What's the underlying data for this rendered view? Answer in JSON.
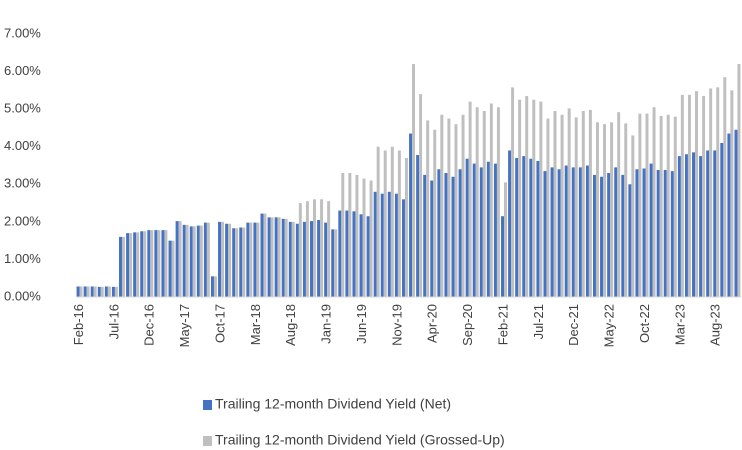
{
  "chart_data": {
    "type": "bar",
    "categories": [
      "Feb-16",
      null,
      null,
      null,
      null,
      "Jul-16",
      null,
      null,
      null,
      null,
      "Dec-16",
      null,
      null,
      null,
      null,
      "May-17",
      null,
      null,
      null,
      null,
      "Oct-17",
      null,
      null,
      null,
      null,
      "Mar-18",
      null,
      null,
      null,
      null,
      "Aug-18",
      null,
      null,
      null,
      null,
      "Jan-19",
      null,
      null,
      null,
      null,
      "Jun-19",
      null,
      null,
      null,
      null,
      "Nov-19",
      null,
      null,
      null,
      null,
      "Apr-20",
      null,
      null,
      null,
      null,
      "Sep-20",
      null,
      null,
      null,
      null,
      "Feb-21",
      null,
      null,
      null,
      null,
      "Jul-21",
      null,
      null,
      null,
      null,
      "Dec-21",
      null,
      null,
      null,
      null,
      "May-22",
      null,
      null,
      null,
      null,
      "Oct-22",
      null,
      null,
      null,
      null,
      "Mar-23",
      null,
      null,
      null,
      null,
      "Aug-23",
      null,
      null,
      null
    ],
    "series": [
      {
        "name": "Trailing 12-month Dividend Yield (Net)",
        "color": "#4472c4",
        "values": [
          0.28,
          0.28,
          0.28,
          0.27,
          0.28,
          0.27,
          1.6,
          1.7,
          1.72,
          1.75,
          1.78,
          1.78,
          1.78,
          1.5,
          2.02,
          1.92,
          1.88,
          1.9,
          1.98,
          0.55,
          2.0,
          1.95,
          1.83,
          1.85,
          1.98,
          1.98,
          2.22,
          2.12,
          2.12,
          2.08,
          2.0,
          1.95,
          2.0,
          2.02,
          2.05,
          1.98,
          1.8,
          2.3,
          2.3,
          2.28,
          2.2,
          2.15,
          2.8,
          2.75,
          2.8,
          2.75,
          2.6,
          4.35,
          3.78,
          3.25,
          3.1,
          3.4,
          3.3,
          3.2,
          3.4,
          3.68,
          3.55,
          3.45,
          3.6,
          3.55,
          2.15,
          3.9,
          3.7,
          3.75,
          3.68,
          3.62,
          3.35,
          3.45,
          3.4,
          3.5,
          3.45,
          3.45,
          3.5,
          3.25,
          3.2,
          3.3,
          3.45,
          3.25,
          3.0,
          3.4,
          3.42,
          3.55,
          3.38,
          3.38,
          3.35,
          3.75,
          3.8,
          3.85,
          3.75,
          3.9,
          3.9,
          4.1,
          4.35,
          4.45
        ]
      },
      {
        "name": "Trailing 12-month Dividend Yield (Grossed-Up)",
        "color": "#bfbfbf",
        "values": [
          0.28,
          0.28,
          0.28,
          0.27,
          0.28,
          0.27,
          1.6,
          1.7,
          1.72,
          1.75,
          1.78,
          1.78,
          1.78,
          1.5,
          2.02,
          1.92,
          1.88,
          1.9,
          1.98,
          0.55,
          2.0,
          1.95,
          1.83,
          1.85,
          1.98,
          1.98,
          2.22,
          2.12,
          2.12,
          2.08,
          2.0,
          2.5,
          2.55,
          2.6,
          2.6,
          2.55,
          1.8,
          3.3,
          3.3,
          3.25,
          3.15,
          3.1,
          4.0,
          3.9,
          4.0,
          3.9,
          3.7,
          6.2,
          5.4,
          4.7,
          4.45,
          4.85,
          4.75,
          4.6,
          4.85,
          5.2,
          5.05,
          4.95,
          5.15,
          5.05,
          3.05,
          5.58,
          5.25,
          5.35,
          5.25,
          5.2,
          4.75,
          4.95,
          4.85,
          5.02,
          4.78,
          4.95,
          4.98,
          4.65,
          4.6,
          4.65,
          4.92,
          4.62,
          4.3,
          4.88,
          4.88,
          5.05,
          4.82,
          4.85,
          4.8,
          5.38,
          5.38,
          5.48,
          5.35,
          5.55,
          5.58,
          5.85,
          5.5,
          6.2
        ]
      }
    ],
    "ylim": [
      0,
      7
    ],
    "yticks": [
      {
        "value": 0,
        "label": "0.00%"
      },
      {
        "value": 1,
        "label": "1.00%"
      },
      {
        "value": 2,
        "label": "2.00%"
      },
      {
        "value": 3,
        "label": "3.00%"
      },
      {
        "value": 4,
        "label": "4.00%"
      },
      {
        "value": 5,
        "label": "5.00%"
      },
      {
        "value": 6,
        "label": "6.00%"
      },
      {
        "value": 7,
        "label": "7.00%"
      }
    ],
    "legend": "bottom"
  }
}
